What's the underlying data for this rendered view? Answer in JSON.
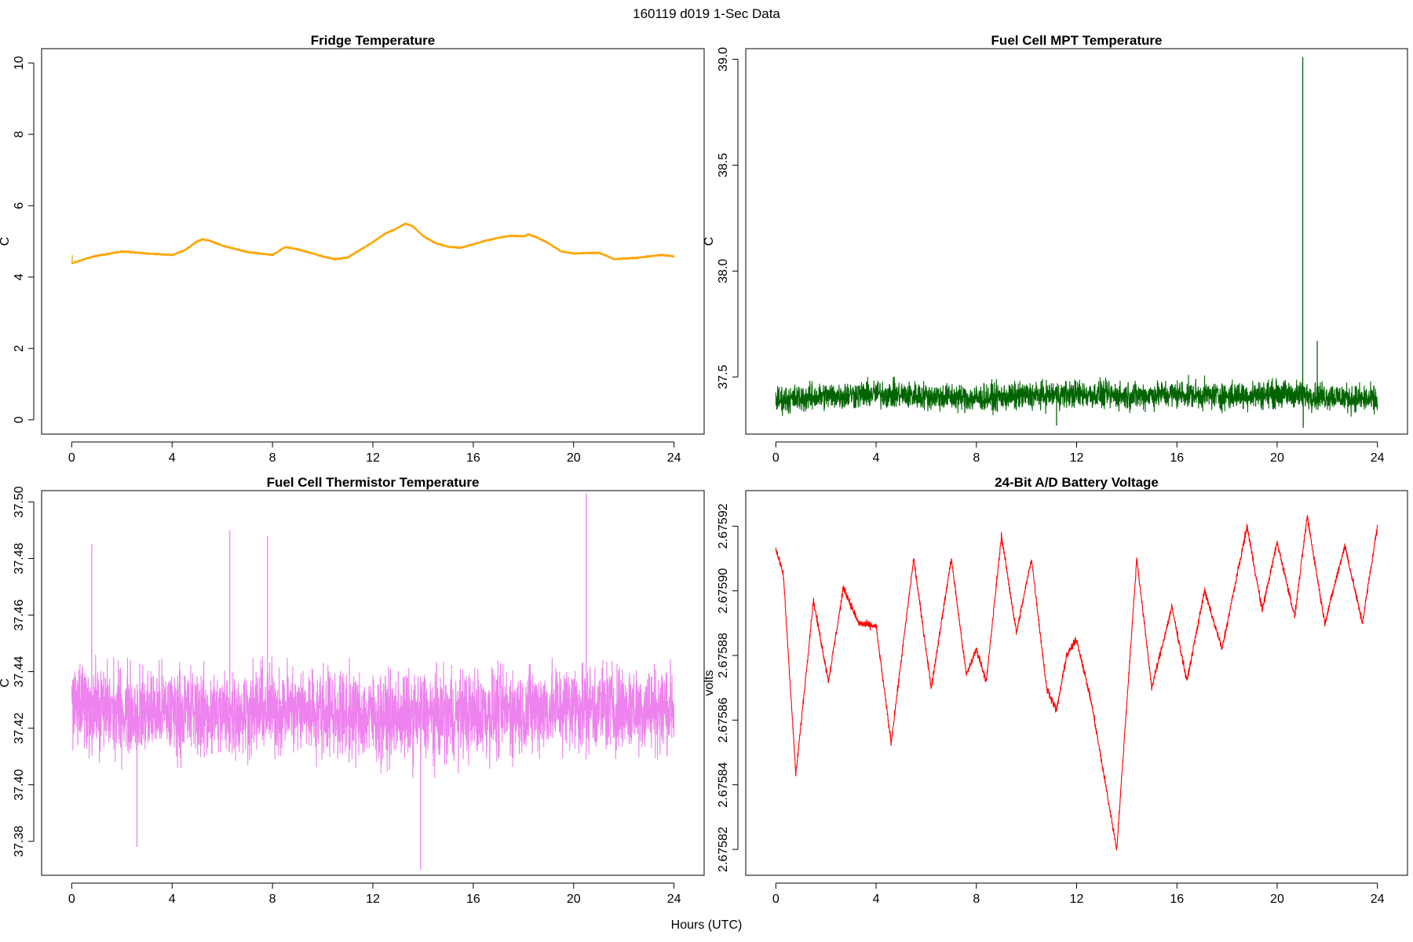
{
  "figure": {
    "main_title": "160119   d019   1-Sec Data",
    "xlabel": "Hours (UTC)"
  },
  "chart_data": [
    {
      "type": "line",
      "title": "Fridge Temperature",
      "xlabel": "",
      "ylabel": "C",
      "xlim": [
        -1.2,
        25.2
      ],
      "ylim": [
        -0.4,
        10.4
      ],
      "xticks": [
        0,
        4,
        8,
        12,
        16,
        20,
        24
      ],
      "yticks": [
        0,
        2,
        4,
        6,
        8,
        10
      ],
      "ytick_labels": [
        "0",
        "2",
        "4",
        "6",
        "8",
        "10"
      ],
      "color": "#FFA500",
      "noise": 0.015,
      "spikes": [
        [
          0.02,
          4.62
        ]
      ],
      "series": [
        {
          "x": [
            0,
            0.5,
            1,
            1.5,
            2,
            3,
            4,
            4.5,
            5,
            5.2,
            5.5,
            6,
            7,
            8,
            8.5,
            9,
            10,
            10.5,
            11,
            12,
            12.5,
            13,
            13.3,
            13.6,
            14,
            14.5,
            15,
            15.5,
            16,
            16.5,
            17,
            17.5,
            18,
            18.2,
            18.5,
            19,
            19.5,
            20,
            21,
            21.3,
            21.6,
            22,
            22.5,
            23,
            23.5,
            24
          ],
          "y": [
            4.38,
            4.5,
            4.6,
            4.65,
            4.72,
            4.66,
            4.62,
            4.75,
            5.0,
            5.06,
            5.02,
            4.88,
            4.7,
            4.62,
            4.84,
            4.78,
            4.58,
            4.5,
            4.55,
            4.98,
            5.22,
            5.38,
            5.5,
            5.42,
            5.15,
            4.95,
            4.85,
            4.82,
            4.92,
            5.02,
            5.1,
            5.16,
            5.14,
            5.2,
            5.12,
            4.95,
            4.72,
            4.66,
            4.68,
            4.6,
            4.5,
            4.52,
            4.54,
            4.58,
            4.62,
            4.58
          ]
        }
      ]
    },
    {
      "type": "line",
      "title": "Fuel Cell MPT Temperature",
      "xlabel": "",
      "ylabel": "C",
      "xlim": [
        -1.2,
        25.2
      ],
      "ylim": [
        37.23,
        39.05
      ],
      "xticks": [
        0,
        4,
        8,
        12,
        16,
        20,
        24
      ],
      "yticks": [
        37.5,
        38.0,
        38.5,
        39.0
      ],
      "ytick_labels": [
        "37.5",
        "38.0",
        "38.5",
        "39.0"
      ],
      "color": "#006400",
      "noise": 0.07,
      "spikes": [
        [
          21.02,
          39.01
        ],
        [
          21.04,
          37.26
        ],
        [
          21.6,
          37.67
        ],
        [
          11.2,
          37.27
        ]
      ],
      "series": [
        {
          "x": [
            0,
            2,
            4,
            6,
            8,
            10,
            12,
            14,
            16,
            18,
            20,
            22,
            24
          ],
          "y": [
            37.39,
            37.41,
            37.42,
            37.41,
            37.4,
            37.41,
            37.42,
            37.41,
            37.42,
            37.41,
            37.42,
            37.41,
            37.39
          ]
        }
      ]
    },
    {
      "type": "line",
      "title": "Fuel Cell Thermistor Temperature",
      "xlabel": "",
      "ylabel": "C",
      "xlim": [
        -1.2,
        25.2
      ],
      "ylim": [
        37.368,
        37.504
      ],
      "xticks": [
        0,
        4,
        8,
        12,
        16,
        20,
        24
      ],
      "yticks": [
        37.38,
        37.4,
        37.42,
        37.44,
        37.46,
        37.48,
        37.5
      ],
      "ytick_labels": [
        "37.38",
        "37.40",
        "37.42",
        "37.44",
        "37.46",
        "37.48",
        "37.50"
      ],
      "color": "#EE82EE",
      "noise": 0.017,
      "spikes": [
        [
          20.5,
          37.503
        ],
        [
          13.9,
          37.37
        ],
        [
          0.8,
          37.485
        ],
        [
          6.3,
          37.49
        ],
        [
          7.8,
          37.488
        ],
        [
          2.6,
          37.378
        ]
      ],
      "series": [
        {
          "x": [
            0,
            2,
            4,
            6,
            8,
            10,
            12,
            14,
            16,
            18,
            20,
            22,
            24
          ],
          "y": [
            37.428,
            37.426,
            37.426,
            37.425,
            37.427,
            37.426,
            37.424,
            37.424,
            37.425,
            37.426,
            37.428,
            37.427,
            37.427
          ]
        }
      ]
    },
    {
      "type": "line",
      "title": "24-Bit A/D Battery Voltage",
      "xlabel": "",
      "ylabel": "volts",
      "xlim": [
        -1.2,
        25.2
      ],
      "ylim": [
        2.675812,
        2.675931
      ],
      "xticks": [
        0,
        4,
        8,
        12,
        16,
        20,
        24
      ],
      "yticks": [
        2.67582,
        2.67584,
        2.67586,
        2.67588,
        2.6759,
        2.67592
      ],
      "ytick_labels": [
        "2.67582",
        "2.67584",
        "2.67586",
        "2.67588",
        "2.67590",
        "2.67592"
      ],
      "color": "#FF0000",
      "noise": 1.2e-06,
      "spikes": [],
      "series": [
        {
          "x": [
            0,
            0.3,
            0.8,
            1.5,
            2.1,
            2.7,
            3.3,
            4.0,
            4.6,
            5.5,
            6.2,
            7.0,
            7.6,
            8.0,
            8.4,
            9.0,
            9.6,
            10.2,
            10.8,
            11.2,
            11.6,
            12.0,
            12.6,
            13.6,
            14.4,
            15.0,
            15.8,
            16.4,
            17.1,
            17.8,
            18.8,
            19.4,
            20.0,
            20.7,
            21.2,
            21.9,
            22.7,
            23.4,
            24.0
          ],
          "y": [
            2.675913,
            2.675905,
            2.675843,
            2.675897,
            2.675872,
            2.675901,
            2.67589,
            2.675889,
            2.675853,
            2.67591,
            2.67587,
            2.67591,
            2.675874,
            2.675882,
            2.675872,
            2.675917,
            2.675887,
            2.67591,
            2.67587,
            2.675863,
            2.67588,
            2.675885,
            2.675865,
            2.67582,
            2.67591,
            2.67587,
            2.675895,
            2.675872,
            2.6759,
            2.675882,
            2.67592,
            2.675894,
            2.675915,
            2.675892,
            2.675923,
            2.67589,
            2.675914,
            2.67589,
            2.67592
          ]
        }
      ]
    }
  ]
}
